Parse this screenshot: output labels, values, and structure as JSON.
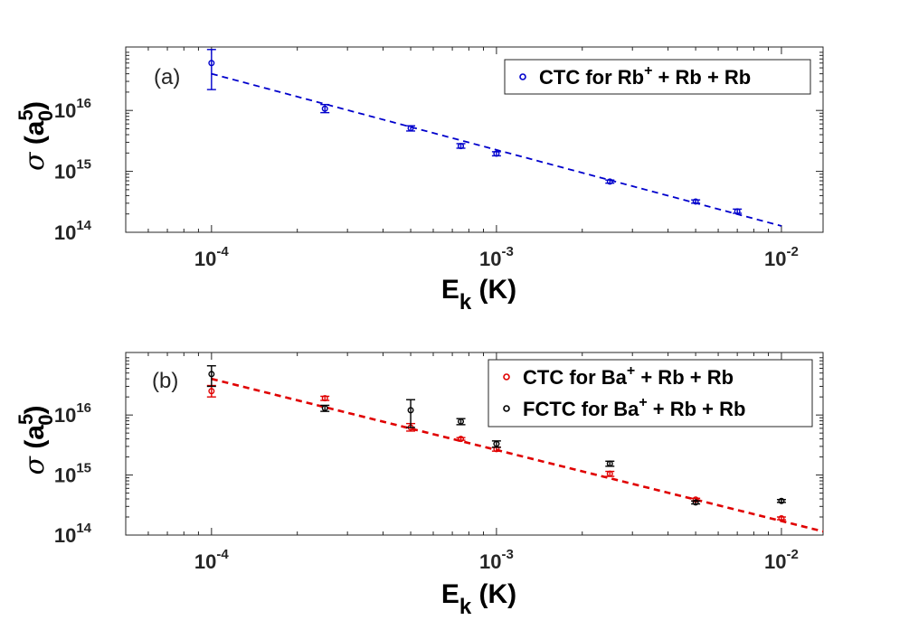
{
  "chart_data": [
    {
      "type": "scatter",
      "panel_label": "(a)",
      "xscale": "log",
      "yscale": "log",
      "xlim": [
        5e-05,
        0.014
      ],
      "ylim": [
        100000000000000.0,
        1.1e+17
      ],
      "xticks": [
        {
          "mant": "10",
          "exp": "-4",
          "value": 0.0001
        },
        {
          "mant": "10",
          "exp": "-3",
          "value": 0.001
        },
        {
          "mant": "10",
          "exp": "-2",
          "value": 0.01
        }
      ],
      "yticks": [
        {
          "mant": "10",
          "exp": "14",
          "value": 100000000000000.0
        },
        {
          "mant": "10",
          "exp": "15",
          "value": 1000000000000000.0
        },
        {
          "mant": "10",
          "exp": "16",
          "value": 1e+16
        }
      ],
      "xlabel": {
        "main": "E",
        "sub": "k",
        "unit": " (K)"
      },
      "ylabel": {
        "sym": "σ",
        "open": " (a",
        "sub": "0",
        "sup": "5",
        "close": ")"
      },
      "legend": {
        "position": "top-right",
        "entries": [
          {
            "pre": "CTC for Rb",
            "sup": "+",
            "post": " + Rb + Rb",
            "color": "#0000CC"
          }
        ]
      },
      "series": [
        {
          "name": "CTC for Rb+ + Rb + Rb",
          "color": "#0000CC",
          "x": [
            0.0001,
            0.00025,
            0.0005,
            0.00075,
            0.001,
            0.0025,
            0.005,
            0.007
          ],
          "y": [
            6e+16,
            1.07e+16,
            5100000000000000.0,
            2600000000000000.0,
            1950000000000000.0,
            680000000000000.0,
            320000000000000.0,
            220000000000000.0
          ],
          "err_low": [
            2.2e+16,
            9200000000000000.0,
            4600000000000000.0,
            2400000000000000.0,
            1800000000000000.0,
            640000000000000.0,
            300000000000000.0,
            205000000000000.0
          ],
          "err_high": [
            1e+17,
            1.25e+16,
            5600000000000000.0,
            2850000000000000.0,
            2100000000000000.0,
            720000000000000.0,
            340000000000000.0,
            240000000000000.0
          ]
        }
      ],
      "fit": {
        "color": "#0000CC",
        "x": [
          0.0001,
          0.01
        ],
        "y": [
          4e+16,
          127000000000000.0
        ]
      }
    },
    {
      "type": "scatter",
      "panel_label": "(b)",
      "xscale": "log",
      "yscale": "log",
      "xlim": [
        5e-05,
        0.014
      ],
      "ylim": [
        100000000000000.0,
        1.1e+17
      ],
      "xticks": [
        {
          "mant": "10",
          "exp": "-4",
          "value": 0.0001
        },
        {
          "mant": "10",
          "exp": "-3",
          "value": 0.001
        },
        {
          "mant": "10",
          "exp": "-2",
          "value": 0.01
        }
      ],
      "yticks": [
        {
          "mant": "10",
          "exp": "14",
          "value": 100000000000000.0
        },
        {
          "mant": "10",
          "exp": "15",
          "value": 1000000000000000.0
        },
        {
          "mant": "10",
          "exp": "16",
          "value": 1e+16
        }
      ],
      "xlabel": {
        "main": "E",
        "sub": "k",
        "unit": " (K)"
      },
      "ylabel": {
        "sym": "σ",
        "open": " (a",
        "sub": "0",
        "sup": "5",
        "close": ")"
      },
      "legend": {
        "position": "top-right",
        "entries": [
          {
            "pre": "CTC for Ba",
            "sup": "+",
            "post": " + Rb + Rb",
            "color": "#E00000"
          },
          {
            "pre": "FCTC for Ba",
            "sup": "+",
            "post": " + Rb + Rb",
            "color": "#000000"
          }
        ]
      },
      "series": [
        {
          "name": "CTC for Ba+ + Rb + Rb",
          "color": "#E00000",
          "x": [
            0.0001,
            0.00025,
            0.0005,
            0.00075,
            0.001,
            0.0025,
            0.005,
            0.01
          ],
          "y": [
            2.5e+16,
            1.9e+16,
            6200000000000000.0,
            4000000000000000.0,
            2700000000000000.0,
            1050000000000000.0,
            390000000000000.0,
            190000000000000.0
          ],
          "err_low": [
            2e+16,
            1.75e+16,
            5400000000000000.0,
            3800000000000000.0,
            2500000000000000.0,
            950000000000000.0,
            370000000000000.0,
            180000000000000.0
          ],
          "err_high": [
            3.1e+16,
            2.05e+16,
            7200000000000000.0,
            4200000000000000.0,
            2900000000000000.0,
            1150000000000000.0,
            410000000000000.0,
            200000000000000.0
          ]
        },
        {
          "name": "FCTC for Ba+ + Rb + Rb",
          "color": "#000000",
          "x": [
            0.0001,
            0.00025,
            0.0005,
            0.00075,
            0.001,
            0.0025,
            0.005,
            0.01
          ],
          "y": [
            4.8e+16,
            1.3e+16,
            1.2e+16,
            7800000000000000.0,
            3300000000000000.0,
            1550000000000000.0,
            350000000000000.0,
            370000000000000.0
          ],
          "err_low": [
            3e+16,
            1.15e+16,
            6200000000000000.0,
            6900000000000000.0,
            2900000000000000.0,
            1400000000000000.0,
            330000000000000.0,
            350000000000000.0
          ],
          "err_high": [
            6.6e+16,
            1.45e+16,
            1.8e+16,
            8700000000000000.0,
            3700000000000000.0,
            1700000000000000.0,
            370000000000000.0,
            390000000000000.0
          ]
        }
      ],
      "fit": {
        "color": "#E00000",
        "x": [
          0.0001,
          0.014
        ],
        "y": [
          4e+16,
          115000000000000.0
        ]
      }
    }
  ]
}
